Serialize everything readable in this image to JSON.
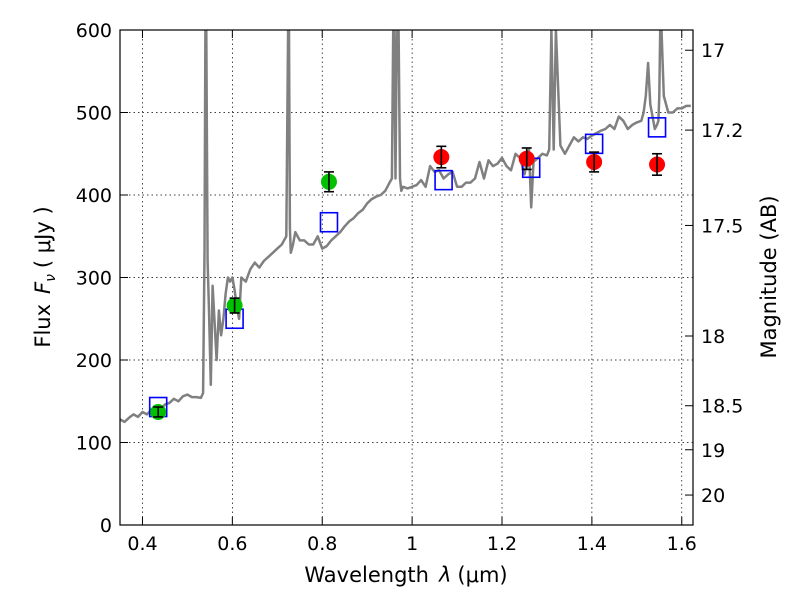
{
  "chart_data": {
    "type": "scatter",
    "xlabel_main": "Wavelength",
    "xlabel_symbol": "λ",
    "xlabel_unit": "(μm)",
    "ylabel_main": "Flux",
    "ylabel_symbol": "F",
    "ylabel_sub": "ν",
    "ylabel_unit": "( μJy )",
    "y2label": "Magnitude (AB)",
    "xlim": [
      0.35,
      1.625
    ],
    "ylim": [
      0,
      600
    ],
    "grid": true,
    "x_ticks": [
      {
        "value": 0.4,
        "label": "0.4"
      },
      {
        "value": 0.6,
        "label": "0.6"
      },
      {
        "value": 0.8,
        "label": "0.8"
      },
      {
        "value": 1.0,
        "label": "1"
      },
      {
        "value": 1.2,
        "label": "1.2"
      },
      {
        "value": 1.4,
        "label": "1.4"
      },
      {
        "value": 1.6,
        "label": "1.6"
      }
    ],
    "y_ticks": [
      {
        "value": 0,
        "label": "0"
      },
      {
        "value": 100,
        "label": "100"
      },
      {
        "value": 200,
        "label": "200"
      },
      {
        "value": 300,
        "label": "300"
      },
      {
        "value": 400,
        "label": "400"
      },
      {
        "value": 500,
        "label": "500"
      },
      {
        "value": 600,
        "label": "600"
      }
    ],
    "y2_ticks": [
      {
        "magnitude": 17,
        "label": "17"
      },
      {
        "magnitude": 17.2,
        "label": "17.2"
      },
      {
        "magnitude": 17.5,
        "label": "17.5"
      },
      {
        "magnitude": 18,
        "label": "18"
      },
      {
        "magnitude": 18.5,
        "label": "18.5"
      },
      {
        "magnitude": 19,
        "label": "19"
      },
      {
        "magnitude": 20,
        "label": "20"
      }
    ],
    "series": [
      {
        "kind": "spectrum-line",
        "color": "#808080",
        "x": [
          0.35,
          0.36,
          0.37,
          0.38,
          0.39,
          0.4,
          0.41,
          0.42,
          0.43,
          0.44,
          0.45,
          0.46,
          0.47,
          0.48,
          0.49,
          0.5,
          0.51,
          0.52,
          0.53,
          0.535,
          0.538,
          0.54,
          0.542,
          0.545,
          0.548,
          0.552,
          0.556,
          0.56,
          0.565,
          0.57,
          0.575,
          0.58,
          0.585,
          0.59,
          0.595,
          0.6,
          0.605,
          0.61,
          0.615,
          0.62,
          0.63,
          0.64,
          0.65,
          0.66,
          0.67,
          0.68,
          0.69,
          0.7,
          0.71,
          0.72,
          0.724,
          0.726,
          0.728,
          0.73,
          0.735,
          0.74,
          0.75,
          0.76,
          0.77,
          0.78,
          0.79,
          0.8,
          0.81,
          0.82,
          0.83,
          0.84,
          0.85,
          0.86,
          0.87,
          0.88,
          0.89,
          0.9,
          0.91,
          0.92,
          0.93,
          0.94,
          0.95,
          0.955,
          0.958,
          0.96,
          0.963,
          0.966,
          0.97,
          0.973,
          0.976,
          0.98,
          0.99,
          1.0,
          1.01,
          1.02,
          1.03,
          1.04,
          1.05,
          1.06,
          1.07,
          1.08,
          1.09,
          1.1,
          1.11,
          1.12,
          1.13,
          1.14,
          1.15,
          1.16,
          1.17,
          1.18,
          1.19,
          1.2,
          1.21,
          1.22,
          1.23,
          1.24,
          1.25,
          1.26,
          1.265,
          1.27,
          1.28,
          1.29,
          1.3,
          1.305,
          1.31,
          1.315,
          1.32,
          1.33,
          1.34,
          1.35,
          1.36,
          1.37,
          1.38,
          1.39,
          1.4,
          1.41,
          1.42,
          1.43,
          1.44,
          1.45,
          1.46,
          1.47,
          1.48,
          1.49,
          1.5,
          1.51,
          1.515,
          1.52,
          1.525,
          1.53,
          1.54,
          1.545,
          1.548,
          1.55,
          1.552,
          1.555,
          1.56,
          1.57,
          1.58,
          1.59,
          1.6,
          1.61,
          1.62
        ],
        "y": [
          128,
          125,
          130,
          134,
          131,
          137,
          134,
          140,
          143,
          140,
          146,
          148,
          153,
          150,
          156,
          158,
          155,
          155,
          154,
          160,
          330,
          600,
          600,
          320,
          260,
          170,
          290,
          250,
          200,
          260,
          230,
          250,
          280,
          300,
          295,
          300,
          285,
          265,
          250,
          300,
          295,
          310,
          318,
          312,
          320,
          325,
          330,
          335,
          340,
          350,
          600,
          600,
          360,
          330,
          340,
          355,
          345,
          345,
          340,
          340,
          350,
          335,
          338,
          345,
          350,
          355,
          362,
          368,
          372,
          378,
          382,
          390,
          395,
          398,
          400,
          405,
          415,
          420,
          600,
          600,
          420,
          600,
          600,
          420,
          405,
          410,
          408,
          410,
          412,
          418,
          410,
          435,
          428,
          430,
          420,
          425,
          428,
          410,
          410,
          415,
          415,
          420,
          440,
          420,
          442,
          435,
          438,
          445,
          435,
          430,
          450,
          445,
          425,
          455,
          385,
          440,
          445,
          450,
          448,
          455,
          600,
          455,
          600,
          460,
          450,
          460,
          470,
          465,
          470,
          468,
          472,
          475,
          478,
          480,
          485,
          480,
          495,
          490,
          480,
          485,
          488,
          490,
          500,
          520,
          560,
          510,
          480,
          485,
          490,
          520,
          600,
          600,
          520,
          500,
          500,
          505,
          505,
          508,
          508
        ]
      },
      {
        "kind": "model-photometry",
        "color": "#0000ff",
        "marker": "open-square",
        "x": [
          0.435,
          0.605,
          0.815,
          1.07,
          1.265,
          1.405,
          1.545
        ],
        "y": [
          143,
          250,
          367,
          418,
          433,
          462,
          482
        ]
      },
      {
        "kind": "optical-photometry",
        "color": "#00c000",
        "marker": "filled-circle",
        "x": [
          0.435,
          0.605,
          0.815
        ],
        "y": [
          137,
          266,
          416
        ],
        "err": [
          6,
          9,
          12
        ]
      },
      {
        "kind": "nir-photometry",
        "color": "#ff0000",
        "marker": "filled-circle",
        "x": [
          1.065,
          1.255,
          1.405,
          1.545
        ],
        "y": [
          446,
          444,
          440,
          437
        ],
        "err": [
          13,
          13,
          12,
          13
        ]
      }
    ]
  }
}
